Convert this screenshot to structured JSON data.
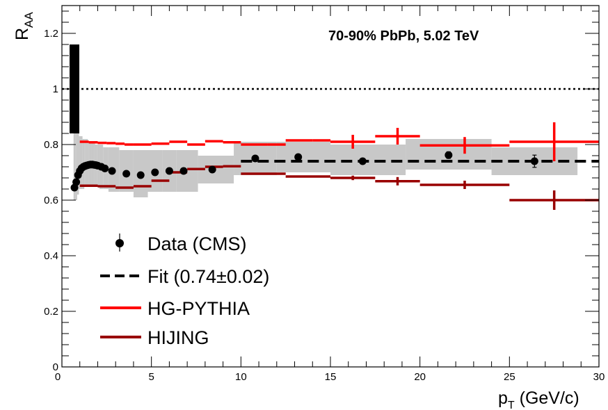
{
  "chart_data": {
    "type": "scatter",
    "annotation": "70-90% PbPb, 5.02 TeV",
    "xlabel": {
      "main": "p",
      "sub": "T",
      "unit": " (GeV/c)"
    },
    "ylabel": {
      "main": "R",
      "sub": "AA"
    },
    "xlim": [
      0,
      30
    ],
    "ylim": [
      0,
      1.3
    ],
    "x_ticks": [
      0,
      5,
      10,
      15,
      20,
      25,
      30
    ],
    "x_tick_labels": [
      "0",
      "5",
      "10",
      "15",
      "20",
      "25",
      "30"
    ],
    "y_ticks": [
      0,
      0.2,
      0.4,
      0.6,
      0.8,
      1.0,
      1.2
    ],
    "y_tick_labels": [
      "0",
      "0.2",
      "0.4",
      "0.6",
      "0.8",
      "1",
      "1.2"
    ],
    "reference_line": 1.0,
    "normalization_box": {
      "x": 0.7,
      "ylow": 0.84,
      "yhigh": 1.16,
      "color": "#000000"
    },
    "colors": {
      "data": "#000000",
      "fit": "#000000",
      "hgpythia": "#ff0000",
      "hijing": "#990000",
      "syst": "#c8c8c8"
    },
    "series": [
      {
        "name": "Data (CMS)",
        "legend": "Data (CMS)",
        "points": [
          {
            "x": 0.7,
            "y": 0.645,
            "yerr": 0.0,
            "syst": [
              0.6,
              0.85
            ]
          },
          {
            "x": 0.8,
            "y": 0.665,
            "yerr": 0.0,
            "syst": [
              0.6,
              0.85
            ]
          },
          {
            "x": 0.9,
            "y": 0.69,
            "yerr": 0.0,
            "syst": [
              0.62,
              0.84
            ]
          },
          {
            "x": 1.0,
            "y": 0.705,
            "yerr": 0.0,
            "syst": [
              0.64,
              0.83
            ]
          },
          {
            "x": 1.1,
            "y": 0.715,
            "yerr": 0.0,
            "syst": [
              0.64,
              0.83
            ]
          },
          {
            "x": 1.2,
            "y": 0.72,
            "yerr": 0.0,
            "syst": [
              0.64,
              0.82
            ]
          },
          {
            "x": 1.3,
            "y": 0.723,
            "yerr": 0.0,
            "syst": [
              0.65,
              0.82
            ]
          },
          {
            "x": 1.4,
            "y": 0.725,
            "yerr": 0.0,
            "syst": [
              0.65,
              0.82
            ]
          },
          {
            "x": 1.5,
            "y": 0.727,
            "yerr": 0.0,
            "syst": [
              0.65,
              0.81
            ]
          },
          {
            "x": 1.6,
            "y": 0.728,
            "yerr": 0.0,
            "syst": [
              0.65,
              0.81
            ]
          },
          {
            "x": 1.7,
            "y": 0.728,
            "yerr": 0.0,
            "syst": [
              0.65,
              0.81
            ]
          },
          {
            "x": 1.8,
            "y": 0.727,
            "yerr": 0.0,
            "syst": [
              0.65,
              0.81
            ]
          },
          {
            "x": 1.9,
            "y": 0.726,
            "yerr": 0.0,
            "syst": [
              0.65,
              0.8
            ]
          },
          {
            "x": 2.0,
            "y": 0.724,
            "yerr": 0.0,
            "syst": [
              0.65,
              0.8
            ]
          },
          {
            "x": 2.2,
            "y": 0.72,
            "yerr": 0.0,
            "syst": [
              0.64,
              0.8
            ]
          },
          {
            "x": 2.4,
            "y": 0.714,
            "yerr": 0.0,
            "syst": [
              0.64,
              0.79
            ]
          },
          {
            "x": 2.8,
            "y": 0.705,
            "yerr": 0.0,
            "syst": [
              0.63,
              0.79
            ]
          },
          {
            "x": 3.6,
            "y": 0.695,
            "yerr": 0.0,
            "syst": [
              0.63,
              0.78
            ]
          },
          {
            "x": 4.4,
            "y": 0.69,
            "yerr": 0.0,
            "syst": [
              0.61,
              0.78
            ]
          },
          {
            "x": 5.2,
            "y": 0.7,
            "yerr": 0.0,
            "syst": [
              0.63,
              0.78
            ]
          },
          {
            "x": 6.0,
            "y": 0.705,
            "yerr": 0.0,
            "syst": [
              0.63,
              0.78
            ]
          },
          {
            "x": 6.8,
            "y": 0.705,
            "yerr": 0.0,
            "syst": [
              0.63,
              0.78
            ]
          },
          {
            "x": 8.4,
            "y": 0.71,
            "yerr": 0.0,
            "syst": [
              0.66,
              0.76
            ]
          },
          {
            "x": 10.8,
            "y": 0.75,
            "yerr": 0.0,
            "syst": [
              0.69,
              0.81
            ]
          },
          {
            "x": 13.2,
            "y": 0.755,
            "yerr": 0.0,
            "syst": [
              0.7,
              0.81
            ]
          },
          {
            "x": 16.8,
            "y": 0.74,
            "yerr": 0.0,
            "syst": [
              0.69,
              0.8
            ]
          },
          {
            "x": 21.6,
            "y": 0.762,
            "yerr": 0.012,
            "syst": [
              0.71,
              0.82
            ]
          },
          {
            "x": 26.4,
            "y": 0.74,
            "yerr": 0.022,
            "syst": [
              0.69,
              0.79
            ]
          }
        ]
      },
      {
        "name": "Fit (0.74±0.02)",
        "legend": "Fit (0.74±0.02)",
        "x": [
          10,
          30
        ],
        "y": [
          0.74,
          0.74
        ]
      },
      {
        "name": "HG-PYTHIA",
        "legend": "HG-PYTHIA",
        "bins": [
          {
            "x0": 1.0,
            "x1": 1.5,
            "y": 0.81,
            "yerr": 0.0
          },
          {
            "x0": 1.5,
            "x1": 2.0,
            "y": 0.808,
            "yerr": 0.0
          },
          {
            "x0": 2.0,
            "x1": 2.5,
            "y": 0.806,
            "yerr": 0.0
          },
          {
            "x0": 2.5,
            "x1": 3.0,
            "y": 0.805,
            "yerr": 0.0
          },
          {
            "x0": 3.0,
            "x1": 3.5,
            "y": 0.803,
            "yerr": 0.0
          },
          {
            "x0": 3.5,
            "x1": 4.0,
            "y": 0.8,
            "yerr": 0.0
          },
          {
            "x0": 4.0,
            "x1": 5.0,
            "y": 0.8,
            "yerr": 0.0
          },
          {
            "x0": 5.0,
            "x1": 6.0,
            "y": 0.803,
            "yerr": 0.0
          },
          {
            "x0": 6.0,
            "x1": 7.0,
            "y": 0.81,
            "yerr": 0.0
          },
          {
            "x0": 7.0,
            "x1": 8.0,
            "y": 0.8,
            "yerr": 0.0
          },
          {
            "x0": 8.0,
            "x1": 9.0,
            "y": 0.812,
            "yerr": 0.0
          },
          {
            "x0": 9.0,
            "x1": 10.0,
            "y": 0.808,
            "yerr": 0.0
          },
          {
            "x0": 10.0,
            "x1": 11.5,
            "y": 0.8,
            "yerr": 0.0
          },
          {
            "x0": 11.5,
            "x1": 12.5,
            "y": 0.8,
            "yerr": 0.0
          },
          {
            "x0": 12.5,
            "x1": 14.0,
            "y": 0.815,
            "yerr": 0.0
          },
          {
            "x0": 14.0,
            "x1": 15.0,
            "y": 0.815,
            "yerr": 0.0
          },
          {
            "x0": 15.0,
            "x1": 17.5,
            "y": 0.81,
            "yerr": 0.025
          },
          {
            "x0": 17.5,
            "x1": 20.0,
            "y": 0.83,
            "yerr": 0.03
          },
          {
            "x0": 20.0,
            "x1": 25.0,
            "y": 0.797,
            "yerr": 0.03
          },
          {
            "x0": 25.0,
            "x1": 30.0,
            "y": 0.81,
            "yerr": 0.07
          }
        ]
      },
      {
        "name": "HIJING",
        "legend": "HIJING",
        "bins": [
          {
            "x0": 1.0,
            "x1": 2.0,
            "y": 0.652,
            "yerr": 0.0
          },
          {
            "x0": 2.0,
            "x1": 3.0,
            "y": 0.65,
            "yerr": 0.0
          },
          {
            "x0": 3.0,
            "x1": 4.0,
            "y": 0.645,
            "yerr": 0.0
          },
          {
            "x0": 4.0,
            "x1": 5.0,
            "y": 0.65,
            "yerr": 0.0
          },
          {
            "x0": 5.0,
            "x1": 6.0,
            "y": 0.67,
            "yerr": 0.0
          },
          {
            "x0": 6.0,
            "x1": 7.0,
            "y": 0.7,
            "yerr": 0.0
          },
          {
            "x0": 7.0,
            "x1": 8.0,
            "y": 0.712,
            "yerr": 0.0
          },
          {
            "x0": 8.0,
            "x1": 9.0,
            "y": 0.72,
            "yerr": 0.0
          },
          {
            "x0": 9.0,
            "x1": 10.0,
            "y": 0.722,
            "yerr": 0.0
          },
          {
            "x0": 10.0,
            "x1": 12.5,
            "y": 0.695,
            "yerr": 0.0
          },
          {
            "x0": 12.5,
            "x1": 15.0,
            "y": 0.685,
            "yerr": 0.0
          },
          {
            "x0": 15.0,
            "x1": 17.5,
            "y": 0.68,
            "yerr": 0.008
          },
          {
            "x0": 17.5,
            "x1": 20.0,
            "y": 0.668,
            "yerr": 0.015
          },
          {
            "x0": 20.0,
            "x1": 25.0,
            "y": 0.655,
            "yerr": 0.015
          },
          {
            "x0": 25.0,
            "x1": 30.0,
            "y": 0.6,
            "yerr": 0.035
          }
        ]
      }
    ]
  }
}
